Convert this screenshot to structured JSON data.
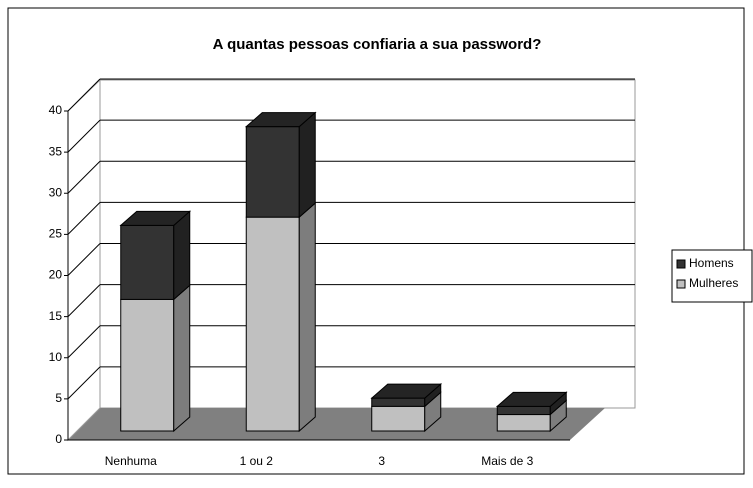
{
  "chart_data": {
    "type": "bar3d_stacked",
    "title": "A quantas pessoas confiaria a sua password?",
    "categories": [
      "Nenhuma",
      "1 ou 2",
      "3",
      "Mais de 3"
    ],
    "series": [
      {
        "name": "Mulheres",
        "color": "#c0c0c0",
        "values": [
          16,
          26,
          3,
          2
        ]
      },
      {
        "name": "Homens",
        "color": "#333333",
        "values": [
          9,
          11,
          1,
          1
        ]
      }
    ],
    "ylim": [
      0,
      40
    ],
    "yticks": [
      0,
      5,
      10,
      15,
      20,
      25,
      30,
      35,
      40
    ],
    "grid": true,
    "legend": "right"
  }
}
